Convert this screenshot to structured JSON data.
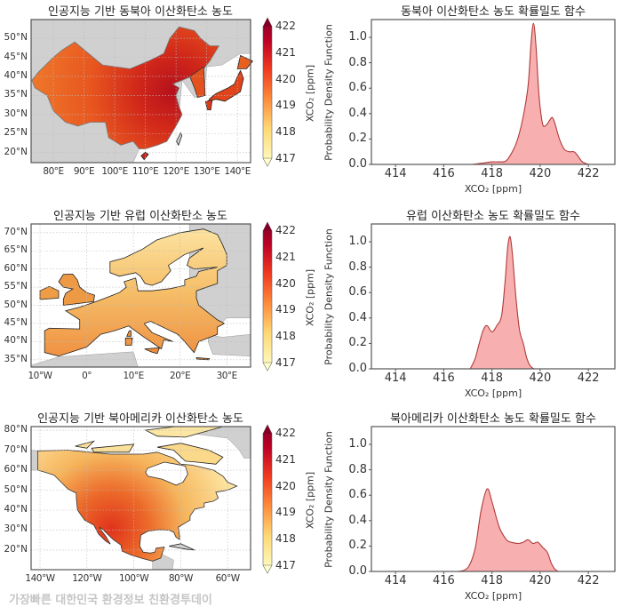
{
  "colorbar": {
    "label": "XCO₂ [ppm]",
    "ticks": [
      "422",
      "421",
      "420",
      "419",
      "418",
      "417"
    ],
    "min": 417,
    "max": 422,
    "colormap": "YlOrRd",
    "extend": "both"
  },
  "pdf_axis": {
    "ylabel": "Probability Density Function",
    "xlabel": "XCO₂ [ppm]",
    "xticks": [
      "414",
      "416",
      "418",
      "420",
      "422"
    ],
    "yticks": [
      "0.0",
      "0.2",
      "0.4",
      "0.6",
      "0.8",
      "1.0"
    ]
  },
  "panels": [
    {
      "map_title": "인공지능 기반 동북아 이산화탄소 농도",
      "lat_ticks": [
        "50°N",
        "45°N",
        "40°N",
        "35°N",
        "30°N",
        "25°N",
        "20°N"
      ],
      "lon_ticks": [
        "80°E",
        "90°E",
        "100°E",
        "110°E",
        "120°E",
        "130°E",
        "140°E"
      ],
      "pdf_title": "동북아 이산화탄소 농도 확률밀도 함수"
    },
    {
      "map_title": "인공지능 기반 유럽 이산화탄소 농도",
      "lat_ticks": [
        "70°N",
        "65°N",
        "60°N",
        "55°N",
        "50°N",
        "45°N",
        "40°N",
        "35°N"
      ],
      "lon_ticks": [
        "10°W",
        "0°",
        "10°E",
        "20°E",
        "30°E"
      ],
      "pdf_title": "유럽 이산화탄소 농도 확률밀도 함수"
    },
    {
      "map_title": "인공지능 기반 북아메리카 이산화탄소 농도",
      "lat_ticks": [
        "80°N",
        "70°N",
        "60°N",
        "50°N",
        "40°N",
        "30°N",
        "20°N"
      ],
      "lon_ticks": [
        "140°W",
        "120°W",
        "100°W",
        "80°W",
        "60°W"
      ],
      "pdf_title": "북아메리카 이산화탄소 농도 확률밀도 함수"
    }
  ],
  "chart_data": [
    {
      "type": "area",
      "title": "동북아 이산화탄소 농도 확률밀도 함수",
      "xlabel": "XCO₂ [ppm]",
      "ylabel": "Probability Density Function",
      "xlim": [
        413,
        423.1
      ],
      "ylim": [
        0,
        1.14
      ],
      "fill_color": "#f7a1a1",
      "line_color": "#b03a3a",
      "x": [
        417.2,
        417.6,
        418.0,
        418.3,
        418.6,
        418.9,
        419.1,
        419.3,
        419.5,
        419.62,
        419.72,
        419.82,
        419.95,
        420.1,
        420.25,
        420.4,
        420.5,
        420.6,
        420.8,
        421.0,
        421.2,
        421.4,
        421.55,
        421.75,
        422.0
      ],
      "y": [
        0.0,
        0.01,
        0.02,
        0.02,
        0.03,
        0.12,
        0.22,
        0.38,
        0.62,
        0.95,
        1.11,
        0.95,
        0.55,
        0.32,
        0.31,
        0.35,
        0.37,
        0.33,
        0.2,
        0.12,
        0.1,
        0.1,
        0.07,
        0.02,
        0.0
      ]
    },
    {
      "type": "area",
      "title": "유럽 이산화탄소 농도 확률밀도 함수",
      "xlabel": "XCO₂ [ppm]",
      "ylabel": "Probability Density Function",
      "xlim": [
        413,
        423.1
      ],
      "ylim": [
        0,
        1.14
      ],
      "fill_color": "#f7a1a1",
      "line_color": "#b03a3a",
      "x": [
        417.1,
        417.3,
        417.5,
        417.65,
        417.8,
        418.0,
        418.2,
        418.4,
        418.55,
        418.65,
        418.75,
        418.85,
        419.0,
        419.15,
        419.3,
        419.45,
        419.6,
        419.75
      ],
      "y": [
        0.0,
        0.08,
        0.22,
        0.31,
        0.34,
        0.29,
        0.34,
        0.42,
        0.7,
        0.95,
        1.04,
        0.9,
        0.55,
        0.3,
        0.2,
        0.08,
        0.02,
        0.0
      ]
    },
    {
      "type": "area",
      "title": "북아메리카 이산화탄소 농도 확률밀도 함수",
      "xlabel": "XCO₂ [ppm]",
      "ylabel": "Probability Density Function",
      "xlim": [
        413,
        423.1
      ],
      "ylim": [
        0,
        1.14
      ],
      "fill_color": "#f7a1a1",
      "line_color": "#b03a3a",
      "x": [
        416.6,
        417.0,
        417.3,
        417.55,
        417.8,
        418.0,
        418.3,
        418.6,
        418.8,
        419.1,
        419.3,
        419.5,
        419.7,
        419.9,
        420.1,
        420.3,
        420.45,
        420.6,
        420.75
      ],
      "y": [
        0.0,
        0.03,
        0.18,
        0.48,
        0.65,
        0.55,
        0.35,
        0.25,
        0.23,
        0.22,
        0.23,
        0.25,
        0.22,
        0.23,
        0.19,
        0.15,
        0.07,
        0.02,
        0.0
      ]
    }
  ],
  "watermark": "가장빠른 대한민국 환경정보 친환경투데이"
}
